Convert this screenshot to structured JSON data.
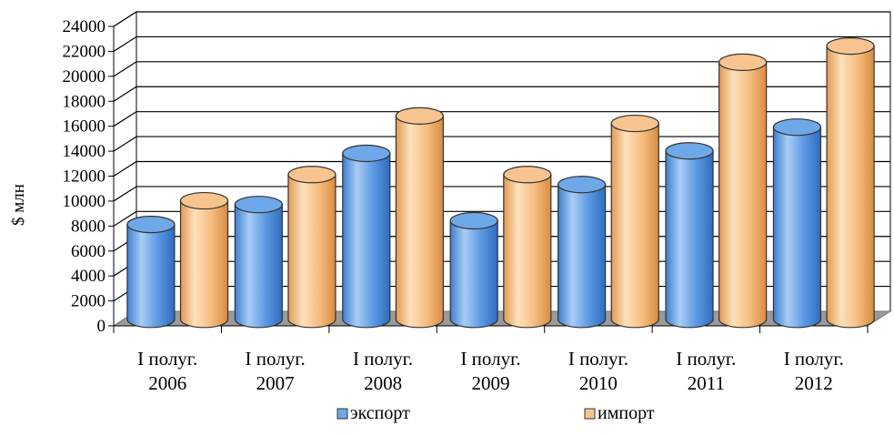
{
  "chart_data": {
    "type": "bar",
    "ylabel": "$ млн",
    "xlabel": "",
    "ylim": [
      0,
      24000
    ],
    "ytick_step": 2000,
    "grid": true,
    "legend_placement": "bottom",
    "categories": [
      [
        "I полуг.",
        "2006"
      ],
      [
        "I полуг.",
        "2007"
      ],
      [
        "I полуг.",
        "2008"
      ],
      [
        "I полуг.",
        "2009"
      ],
      [
        "I полуг.",
        "2010"
      ],
      [
        "I полуг.",
        "2011"
      ],
      [
        "I полуг.",
        "2012"
      ]
    ],
    "series": [
      {
        "name": "экспорт",
        "color": "#6fa8e8",
        "values": [
          7600,
          9200,
          13300,
          7900,
          10800,
          13500,
          15400
        ]
      },
      {
        "name": "импорт",
        "color": "#f7c48f",
        "values": [
          9500,
          11600,
          16300,
          11600,
          15700,
          20600,
          21900
        ]
      }
    ]
  }
}
